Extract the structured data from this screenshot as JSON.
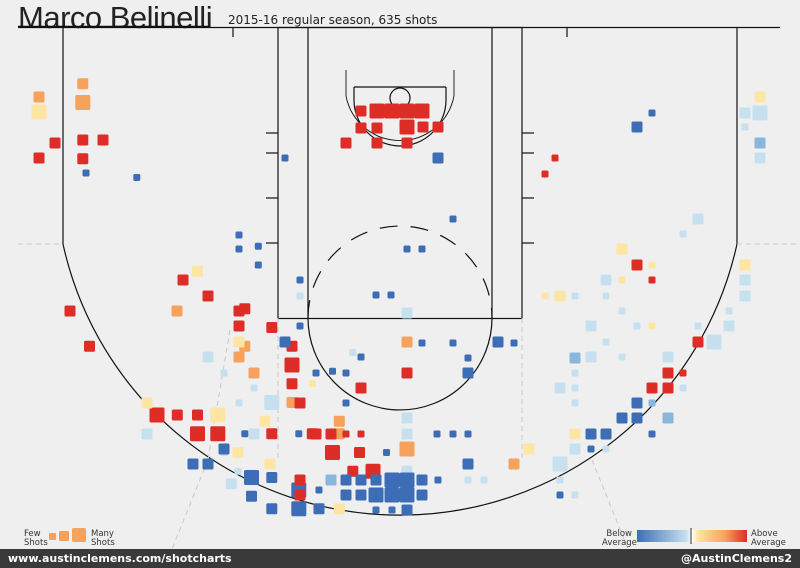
{
  "title": "Marco Belinelli",
  "subtitle": "2015-16 regular season, 635 shots",
  "footer": {
    "left": "www.austinclemens.com/shotcharts",
    "right": "@AustinClemens2"
  },
  "legend": {
    "few": "Few",
    "shots": "Shots",
    "many": "Many",
    "many_shots": "Shots",
    "below": "Below",
    "below_avg": "Average",
    "above": "Above",
    "above_avg": "Average"
  },
  "colors": {
    "below_far": "#3d6eb5",
    "below_mid": "#8ab6dc",
    "below_near": "#c6e0ef",
    "above_near": "#fde6a4",
    "above_mid": "#f6a25c",
    "above_far": "#de2d26",
    "court_line": "#111111"
  },
  "chart_data": {
    "type": "heatmap",
    "description_units": "Each square is a hexbin-like shot location on the half court; x,y in court-feet (x: -25..25 sideline to sideline, y: distance from baseline, 0..~47). size: 1 (few) to 3 (many) shots; color: relative efficiency vs. league average (-3 far below .. +3 far above).",
    "bins": [
      {
        "x": -23.5,
        "y": 4.5,
        "size": 2,
        "c": 2
      },
      {
        "x": -23.5,
        "y": 6.0,
        "size": 3,
        "c": 2
      },
      {
        "x": -23.5,
        "y": 9.0,
        "size": 2,
        "c": 3
      },
      {
        "x": -22.0,
        "y": 9.0,
        "size": 2,
        "c": 3
      },
      {
        "x": -23.5,
        "y": 10.5,
        "size": 2,
        "c": 3
      },
      {
        "x": -19.5,
        "y": 12.0,
        "size": 1,
        "c": -3
      },
      {
        "x": -15.0,
        "y": 19.5,
        "size": 2,
        "c": 1
      },
      {
        "x": -10.5,
        "y": 19.0,
        "size": 1,
        "c": -3
      },
      {
        "x": -10.5,
        "y": 17.5,
        "size": 1,
        "c": -3
      },
      {
        "x": -11.5,
        "y": 22.5,
        "size": 2,
        "c": 3
      },
      {
        "x": -11.5,
        "y": 25.5,
        "size": 2,
        "c": 2
      },
      {
        "x": -9.5,
        "y": 24.0,
        "size": 2,
        "c": 3
      },
      {
        "x": -23.0,
        "y": 25.5,
        "size": 2,
        "c": 3
      },
      {
        "x": -8.0,
        "y": 25.5,
        "size": 2,
        "c": 3
      },
      {
        "x": -8.0,
        "y": 27.0,
        "size": 3,
        "c": 3
      },
      {
        "x": -8.0,
        "y": 28.5,
        "size": 2,
        "c": 3
      },
      {
        "x": -6.5,
        "y": 28.5,
        "size": 1,
        "c": 1
      },
      {
        "x": -5.0,
        "y": 27.5,
        "size": 1,
        "c": -3
      },
      {
        "x": -3.5,
        "y": 26.0,
        "size": 1,
        "c": -1
      },
      {
        "x": -8.0,
        "y": 30.0,
        "size": 2,
        "c": 2
      },
      {
        "x": -9.5,
        "y": 30.0,
        "size": 3,
        "c": -1
      },
      {
        "x": -10.0,
        "y": 31.5,
        "size": 2,
        "c": 1
      },
      {
        "x": -18.0,
        "y": 31.0,
        "size": 3,
        "c": 3
      },
      {
        "x": -16.5,
        "y": 31.0,
        "size": 2,
        "c": 3
      },
      {
        "x": -15.0,
        "y": 31.0,
        "size": 2,
        "c": 3
      },
      {
        "x": -15.0,
        "y": 32.5,
        "size": 3,
        "c": 3
      },
      {
        "x": -13.5,
        "y": 32.5,
        "size": 3,
        "c": 3
      },
      {
        "x": -13.5,
        "y": 31.0,
        "size": 3,
        "c": 1
      },
      {
        "x": -12.0,
        "y": 34.0,
        "size": 2,
        "c": 1
      },
      {
        "x": -11.5,
        "y": 32.5,
        "size": 1,
        "c": -3
      },
      {
        "x": -9.5,
        "y": 32.5,
        "size": 2,
        "c": 3
      },
      {
        "x": -7.5,
        "y": 32.5,
        "size": 1,
        "c": -3
      },
      {
        "x": -6.5,
        "y": 32.5,
        "size": 2,
        "c": 3
      },
      {
        "x": -4.5,
        "y": 31.5,
        "size": 2,
        "c": 2
      },
      {
        "x": -4.5,
        "y": 32.5,
        "size": 2,
        "c": 2
      },
      {
        "x": -5.0,
        "y": 34.0,
        "size": 3,
        "c": 3
      },
      {
        "x": -3.0,
        "y": 34.0,
        "size": 2,
        "c": 3
      },
      {
        "x": -1.0,
        "y": 34.0,
        "size": 1,
        "c": -3
      },
      {
        "x": -13.0,
        "y": 34.0,
        "size": 1,
        "c": -1
      },
      {
        "x": -12.0,
        "y": 35.5,
        "size": 1,
        "c": -1
      },
      {
        "x": -12.5,
        "y": 36.5,
        "size": 2,
        "c": -1
      },
      {
        "x": -11.0,
        "y": 36.0,
        "size": 3,
        "c": -3
      },
      {
        "x": -9.5,
        "y": 36.0,
        "size": 2,
        "c": -3
      },
      {
        "x": -7.5,
        "y": 37.0,
        "size": 3,
        "c": -3
      },
      {
        "x": -11.0,
        "y": 37.5,
        "size": 2,
        "c": -3
      },
      {
        "x": -9.5,
        "y": 38.5,
        "size": 2,
        "c": -3
      },
      {
        "x": -7.5,
        "y": 38.5,
        "size": 3,
        "c": -3
      },
      {
        "x": -6.0,
        "y": 38.5,
        "size": 2,
        "c": -3
      },
      {
        "x": -6.0,
        "y": 37.0,
        "size": 1,
        "c": -3
      },
      {
        "x": -3.5,
        "y": 35.5,
        "size": 2,
        "c": 3
      },
      {
        "x": -2.0,
        "y": 35.5,
        "size": 3,
        "c": 3
      },
      {
        "x": -4.5,
        "y": 38.5,
        "size": 2,
        "c": 1
      },
      {
        "x": 0.5,
        "y": 35.5,
        "size": 2,
        "c": -1
      },
      {
        "x": 0.5,
        "y": 37.0,
        "size": 3,
        "c": 2
      }
    ],
    "note": "Additional symmetric right-side and paint bins drawn in markup"
  }
}
